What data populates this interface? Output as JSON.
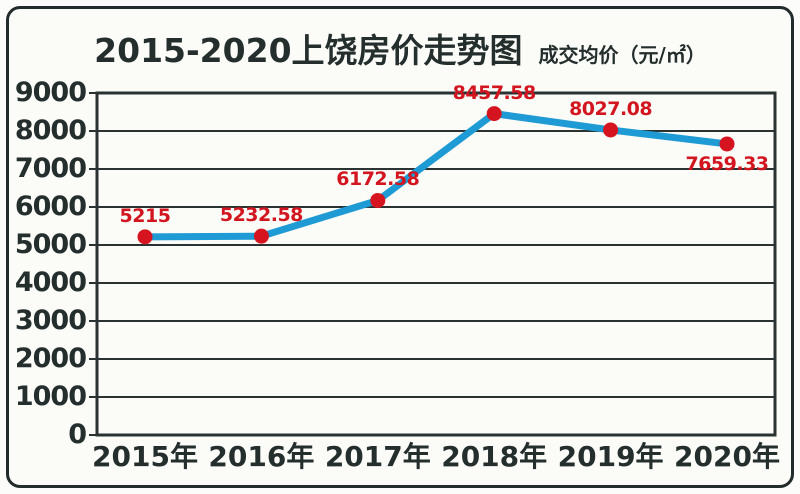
{
  "header": {
    "title": "2015-2020上饶房价走势图",
    "subtitle": "成交均价（元/㎡）"
  },
  "chart_data": {
    "type": "line",
    "title": "2015-2020上饶房价走势图",
    "subtitle": "成交均价（元/㎡）",
    "xlabel": "",
    "ylabel": "",
    "categories": [
      "2015年",
      "2016年",
      "2017年",
      "2018年",
      "2019年",
      "2020年"
    ],
    "values": [
      5215,
      5232.58,
      6172.58,
      8457.58,
      8027.08,
      7659.33
    ],
    "labels": [
      "5215",
      "5232.58",
      "6172.58",
      "8457.58",
      "8027.08",
      "7659.33"
    ],
    "label_positions": [
      "above",
      "above",
      "above",
      "above",
      "above",
      "below"
    ],
    "yticks": [
      0,
      1000,
      2000,
      3000,
      4000,
      5000,
      6000,
      7000,
      8000,
      9000
    ],
    "ylim": [
      0,
      9000
    ],
    "grid": true,
    "legend": "none",
    "colors": {
      "line": "#1e9ad5",
      "marker": "#d6141f",
      "data_label": "#d2151e",
      "axis": "#2a3332",
      "text": "#242e2d",
      "background": "#fbfbf8"
    }
  }
}
